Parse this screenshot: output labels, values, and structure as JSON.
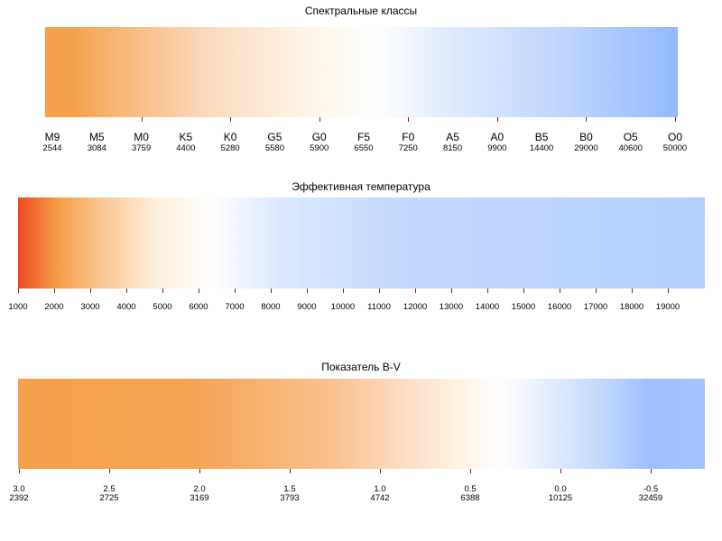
{
  "chart_data": [
    {
      "type": "heatmap",
      "title": "Спектральные классы",
      "categories": [
        "M9",
        "M5",
        "M0",
        "K5",
        "K0",
        "G5",
        "G0",
        "F5",
        "F0",
        "A5",
        "A0",
        "B5",
        "B0",
        "O5",
        "O0"
      ],
      "temperatures": [
        "2544",
        "3084",
        "3759",
        "4400",
        "5280",
        "5580",
        "5900",
        "6550",
        "7250",
        "8150",
        "9900",
        "14400",
        "29000",
        "40600",
        "50000"
      ],
      "colors_start": "#f5a04a",
      "colors_mid": "#ffffff",
      "colors_end": "#93b9fd"
    },
    {
      "type": "heatmap",
      "title": "Эффективная температура",
      "x_ticks": [
        "1000",
        "2000",
        "3000",
        "4000",
        "5000",
        "6000",
        "7000",
        "8000",
        "9000",
        "10000",
        "11000",
        "12000",
        "13000",
        "14000",
        "15000",
        "16000",
        "17000",
        "18000",
        "19000"
      ],
      "xlim": [
        1000,
        20000
      ],
      "colors_start": "#ef4a22",
      "colors_mid": "#ffffff",
      "colors_end": "#b3cffe"
    },
    {
      "type": "heatmap",
      "title": "Показатель B-V",
      "x_ticks": [
        "3.0",
        "2.5",
        "2.0",
        "1.5",
        "1.0",
        "0.5",
        "0.0",
        "-0.5"
      ],
      "temperatures": [
        "2392",
        "2725",
        "3169",
        "3793",
        "4742",
        "6388",
        "10125",
        "32459"
      ],
      "xlim": [
        3.0,
        -0.8
      ],
      "colors_start": "#f5a04a",
      "colors_mid": "#ffffff",
      "colors_end": "#9dbefd"
    }
  ]
}
